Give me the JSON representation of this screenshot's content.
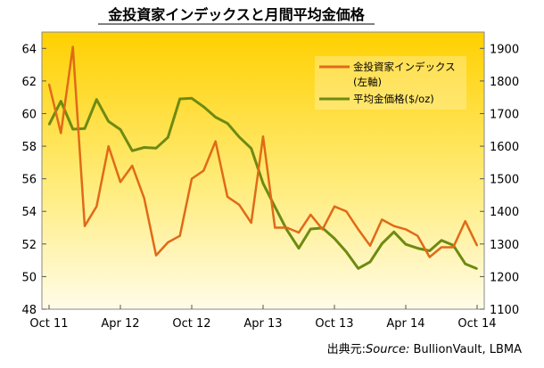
{
  "title": "金投資家インデックスと月間平均金価格",
  "source": {
    "prefix": "出典元:",
    "label": "Source:",
    "text": " BullionVault, LBMA"
  },
  "colors": {
    "index_line": "#E06A18",
    "price_line": "#6E8A12",
    "bg_top": "#FFD000",
    "bg_bottom": "#FFFCE8"
  },
  "chart_data": {
    "type": "line",
    "title": "金投資家インデックスと月間平均金価格",
    "x": [
      "2011-10",
      "2011-11",
      "2011-12",
      "2012-01",
      "2012-02",
      "2012-03",
      "2012-04",
      "2012-05",
      "2012-06",
      "2012-07",
      "2012-08",
      "2012-09",
      "2012-10",
      "2012-11",
      "2012-12",
      "2013-01",
      "2013-02",
      "2013-03",
      "2013-04",
      "2013-05",
      "2013-06",
      "2013-07",
      "2013-08",
      "2013-09",
      "2013-10",
      "2013-11",
      "2013-12",
      "2014-01",
      "2014-02",
      "2014-03",
      "2014-04",
      "2014-05",
      "2014-06",
      "2014-07",
      "2014-08",
      "2014-09",
      "2014-10"
    ],
    "x_ticks": [
      "Oct 11",
      "Apr 12",
      "Oct 12",
      "Apr 13",
      "Oct 13",
      "Apr 14",
      "Oct 14"
    ],
    "x_tick_positions": [
      "2011-10",
      "2012-04",
      "2012-10",
      "2013-04",
      "2013-10",
      "2014-04",
      "2014-10"
    ],
    "legend_position": "top-right",
    "grid": false,
    "series": [
      {
        "name": "金投資家インデックス (左軸)",
        "axis": "left",
        "values": [
          61.8,
          58.8,
          64.1,
          53.1,
          54.3,
          58.0,
          55.8,
          56.8,
          54.8,
          51.3,
          52.1,
          52.5,
          56.0,
          56.5,
          58.3,
          54.9,
          54.4,
          53.3,
          58.6,
          53.0,
          53.0,
          52.7,
          53.8,
          52.9,
          54.3,
          54.0,
          52.9,
          51.9,
          53.5,
          53.1,
          52.9,
          52.5,
          51.2,
          51.8,
          51.8,
          53.4,
          51.9
        ]
      },
      {
        "name": "平均金価格($/oz)",
        "axis": "right",
        "values": [
          1666,
          1738,
          1652,
          1654,
          1743,
          1676,
          1651,
          1586,
          1596,
          1594,
          1627,
          1745,
          1747,
          1721,
          1689,
          1670,
          1628,
          1593,
          1486,
          1414,
          1343,
          1287,
          1346,
          1349,
          1317,
          1276,
          1225,
          1245,
          1301,
          1337,
          1299,
          1287,
          1279,
          1311,
          1296,
          1239,
          1224
        ]
      }
    ],
    "y_left": {
      "ylim": [
        48,
        65
      ],
      "ticks": [
        "48",
        "50",
        "52",
        "54",
        "56",
        "58",
        "60",
        "62",
        "64"
      ]
    },
    "y_right": {
      "ylim": [
        1100,
        1950
      ],
      "ticks": [
        "1100",
        "1200",
        "1300",
        "1400",
        "1500",
        "1600",
        "1700",
        "1800",
        "1900"
      ]
    }
  }
}
